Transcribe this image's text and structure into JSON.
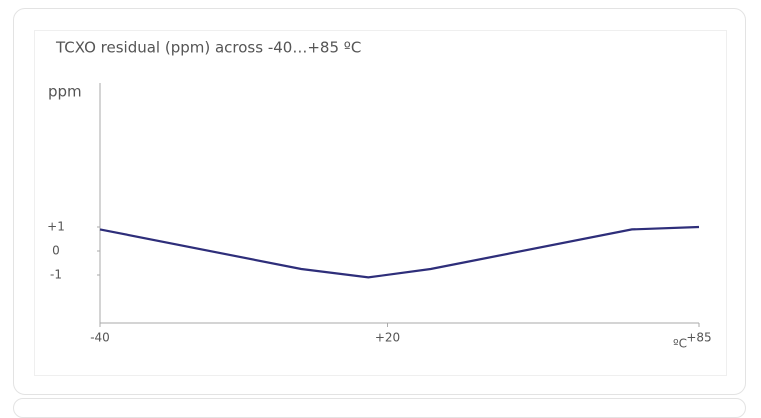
{
  "chart_data": {
    "type": "line",
    "title": "TCXO residual (ppm) across -40…+85 ºC",
    "y_label": "ppm",
    "x_label": "ºC",
    "x": [
      -40,
      2,
      16,
      29,
      71,
      85
    ],
    "series": [
      {
        "color": "#2e2e7a",
        "values": [
          0.9,
          -0.75,
          -1.1,
          -0.75,
          0.9,
          1.0
        ]
      }
    ],
    "xlim": [
      -40,
      85
    ],
    "xticks": [
      -40,
      {
        "value": 20,
        "label": "+20"
      },
      {
        "value": 85,
        "label": "+85"
      }
    ],
    "ylim": [
      -3,
      7
    ],
    "yticks": [
      {
        "value": 1,
        "label": "+1"
      },
      -1,
      0
    ]
  }
}
